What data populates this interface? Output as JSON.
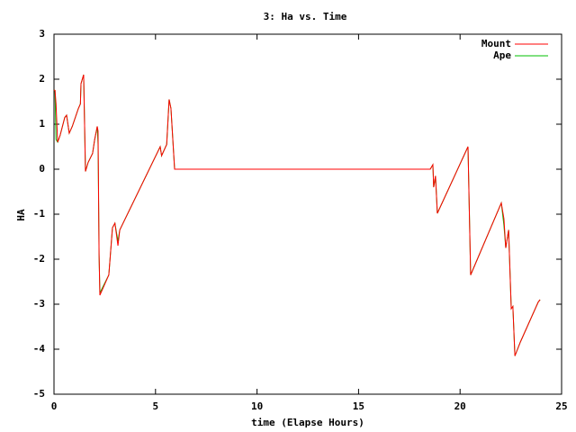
{
  "chart_data": {
    "type": "line",
    "title": "3: Ha vs. Time",
    "x_label": "time (Elapse Hours)",
    "y_label": "HA",
    "x": [
      0,
      0.05,
      0.1,
      0.18,
      0.3,
      0.53,
      0.62,
      0.75,
      0.9,
      1.2,
      1.3,
      1.33,
      1.46,
      1.55,
      1.68,
      1.9,
      2.0,
      2.13,
      2.17,
      2.22,
      2.26,
      2.7,
      2.88,
      3.0,
      3.15,
      3.24,
      5.23,
      5.3,
      5.55,
      5.67,
      5.76,
      5.94,
      18.53,
      18.66,
      18.7,
      18.79,
      18.88,
      20.39,
      20.52,
      22.03,
      22.16,
      22.25,
      22.39,
      22.52,
      22.6,
      22.7,
      22.96,
      23.85,
      23.94
    ],
    "series": [
      {
        "name": "Mount",
        "color": "#ff0000",
        "values": [
          1.76,
          1.75,
          1.45,
          0.6,
          0.75,
          1.15,
          1.2,
          0.8,
          0.95,
          1.35,
          1.45,
          1.9,
          2.1,
          -0.05,
          0.15,
          0.35,
          0.65,
          0.95,
          0.85,
          -1.9,
          -2.8,
          -2.35,
          -1.3,
          -1.2,
          -1.7,
          -1.35,
          0.5,
          0.3,
          0.55,
          1.55,
          1.35,
          0,
          0,
          0.1,
          -0.4,
          -0.15,
          -0.98,
          0.5,
          -2.35,
          -0.75,
          -1.1,
          -1.75,
          -1.35,
          -3.1,
          -3.05,
          -4.15,
          -3.85,
          -2.95,
          -2.9
        ]
      },
      {
        "name": "Ape",
        "color": "#00c000",
        "values": [
          1.76,
          1.75,
          0.66,
          0.6,
          0.75,
          1.15,
          1.2,
          0.8,
          0.95,
          1.35,
          1.45,
          1.9,
          2.1,
          -0.05,
          0.15,
          0.35,
          0.65,
          0.95,
          0.55,
          -1.9,
          -2.75,
          -2.35,
          -1.3,
          -1.2,
          -1.6,
          -1.35,
          0.5,
          0.3,
          0.55,
          1.55,
          1.35,
          0,
          0,
          0.1,
          -0.4,
          -0.15,
          -0.98,
          0.5,
          -2.35,
          -0.75,
          -1.25,
          -1.75,
          -1.35,
          -3.1,
          -3.05,
          -4.15,
          -3.85,
          -2.95,
          -2.9
        ]
      }
    ],
    "xlim": [
      0,
      25
    ],
    "xticks": [
      0,
      5,
      10,
      15,
      20,
      25
    ],
    "ylim": [
      -5,
      3
    ],
    "yticks": [
      -5,
      -4,
      -3,
      -2,
      -1,
      0,
      1,
      2,
      3
    ],
    "legend": "top-right"
  }
}
